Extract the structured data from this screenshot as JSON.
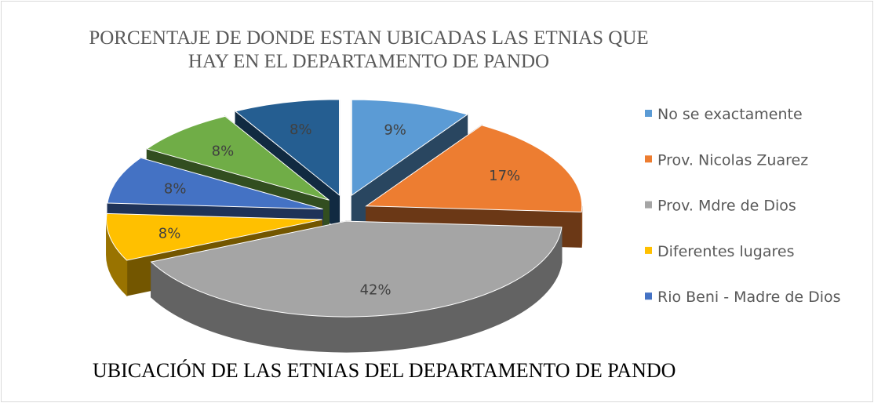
{
  "chart_data": {
    "type": "pie3d",
    "title": "PORCENTAJE DE DONDE ESTAN UBICADAS LAS ETNIAS QUE HAY EN EL DEPARTAMENTO DE PANDO",
    "categories": [
      "No se exactamente",
      "Prov. Nicolas Zuarez",
      "Prov. Mdre de Dios",
      "Diferentes lugares",
      "Rio Beni - Madre de Dios",
      null,
      null
    ],
    "values": [
      9,
      17,
      42,
      8,
      8,
      8,
      8
    ],
    "value_labels": [
      "9%",
      "17%",
      "42%",
      "8%",
      "8%",
      "8%",
      "8%"
    ],
    "colors": [
      "#5b9bd5",
      "#ed7d31",
      "#a5a5a5",
      "#ffc000",
      "#4472c4",
      "#70ad47",
      "#255e91"
    ],
    "legend": "right"
  },
  "caption": "UBICACIÓN DE LAS ETNIAS DEL DEPARTAMENTO DE PANDO"
}
